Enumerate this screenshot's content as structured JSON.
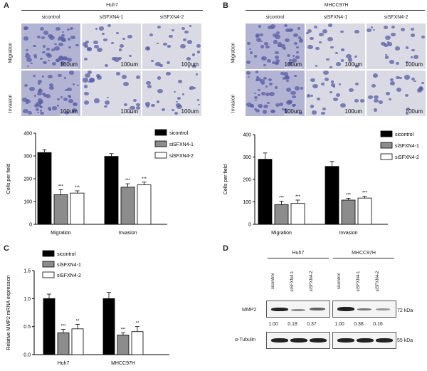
{
  "panels": {
    "A": {
      "letter": "A",
      "cell_line": "Huh7",
      "conditions": [
        "sicontrol",
        "siSFXN4-1",
        "siSFXN4-2"
      ],
      "rows": [
        "Migration",
        "Invasion"
      ],
      "scale_label": "100um"
    },
    "B": {
      "letter": "B",
      "cell_line": "MHCC97H",
      "conditions": [
        "sicontrol",
        "siSFXN4-1",
        "siSFXN4-2"
      ],
      "rows": [
        "Migration",
        "Invasion"
      ],
      "scale_label": "100um"
    },
    "C": {
      "letter": "C"
    },
    "D": {
      "letter": "D",
      "groups": [
        "Huh7",
        "MHCC97H"
      ],
      "lanes": [
        "sicontrol",
        "siSFXN4-1",
        "siSFXN4-2"
      ],
      "row_labels": [
        "MMP2",
        "α-Tubulin"
      ],
      "kda": [
        "72 kDa",
        "55 kDa"
      ],
      "quant_huh7": [
        "1.00",
        "0.18",
        "0.37"
      ],
      "quant_mhcc": [
        "1.00",
        "0.38",
        "0.16"
      ]
    }
  },
  "chart_data": [
    {
      "id": "A-bar",
      "type": "bar",
      "categories": [
        "Migration",
        "Invasion"
      ],
      "series": [
        {
          "name": "sicontrol",
          "values": [
            315,
            298
          ],
          "errors": [
            12,
            12
          ],
          "sig": [
            "",
            ""
          ],
          "color": "#000000"
        },
        {
          "name": "siSFXN4-1",
          "values": [
            130,
            163
          ],
          "errors": [
            22,
            15
          ],
          "sig": [
            "***",
            "***"
          ],
          "color": "#8c8c8c"
        },
        {
          "name": "siSFXN4-2",
          "values": [
            137,
            173
          ],
          "errors": [
            10,
            12
          ],
          "sig": [
            "***",
            "***"
          ],
          "color": "#ffffff"
        }
      ],
      "ylabel": "Cells per field",
      "ylim": [
        0,
        400
      ],
      "yticks": [
        0,
        100,
        200,
        300,
        400
      ]
    },
    {
      "id": "B-bar",
      "type": "bar",
      "categories": [
        "Migration",
        "Invasion"
      ],
      "series": [
        {
          "name": "sicontrol",
          "values": [
            290,
            258
          ],
          "errors": [
            28,
            22
          ],
          "sig": [
            "",
            ""
          ],
          "color": "#000000"
        },
        {
          "name": "siSFXN4-1",
          "values": [
            88,
            108
          ],
          "errors": [
            15,
            8
          ],
          "sig": [
            "***",
            "***"
          ],
          "color": "#8c8c8c"
        },
        {
          "name": "siSFXN4-2",
          "values": [
            93,
            117
          ],
          "errors": [
            15,
            8
          ],
          "sig": [
            "***",
            "***"
          ],
          "color": "#ffffff"
        }
      ],
      "ylabel": "Cells per field",
      "ylim": [
        0,
        400
      ],
      "yticks": [
        0,
        100,
        200,
        300,
        400
      ]
    },
    {
      "id": "C-bar",
      "type": "bar",
      "categories": [
        "Huh7",
        "MHCC97H"
      ],
      "series": [
        {
          "name": "sicontrol",
          "values": [
            1.0,
            1.0
          ],
          "errors": [
            0.08,
            0.11
          ],
          "sig": [
            "",
            ""
          ],
          "color": "#000000"
        },
        {
          "name": "siSFXN4-1",
          "values": [
            0.39,
            0.35
          ],
          "errors": [
            0.06,
            0.04
          ],
          "sig": [
            "***",
            "***"
          ],
          "color": "#8c8c8c"
        },
        {
          "name": "siSFXN4-2",
          "values": [
            0.46,
            0.41
          ],
          "errors": [
            0.08,
            0.09
          ],
          "sig": [
            "**",
            "**"
          ],
          "color": "#ffffff"
        }
      ],
      "ylabel": "Relative MMP2 mRNA expression",
      "ylim": [
        0,
        1.5
      ],
      "yticks": [
        0.0,
        0.5,
        1.0,
        1.5
      ],
      "ytick_labels": [
        "0.0",
        "0.5",
        "1.0",
        "1.5"
      ]
    }
  ]
}
